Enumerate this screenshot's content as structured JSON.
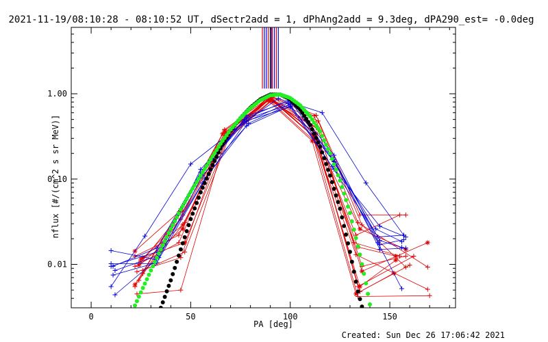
{
  "chart_data": {
    "type": "scatter",
    "title": "2021-11-19/08:10:28 - 08:10:52 UT, dSectr2add = 1, dPhAng2add = 9.3deg, dPA290_est= -0.0deg",
    "xlabel": "PA [deg]",
    "ylabel": "nflux [#/(cm^2 s sr MeV)]",
    "footer": "Created: Sun Dec 26 17:06:42 2021",
    "xlim": [
      -10,
      183
    ],
    "ylim": [
      0.0031,
      6.0
    ],
    "yscale": "log",
    "grid": false,
    "xticks": [
      {
        "v": 0,
        "label": "0"
      },
      {
        "v": 50,
        "label": "50"
      },
      {
        "v": 100,
        "label": "100"
      },
      {
        "v": 150,
        "label": "150"
      }
    ],
    "yticks": [
      {
        "v": 0.01,
        "label": "0.01"
      },
      {
        "v": 0.1,
        "label": "0.10"
      },
      {
        "v": 1,
        "label": "1.00"
      }
    ],
    "colors": {
      "red": "#e00000",
      "blue": "#0000dd",
      "green": "#22ee22",
      "black": "#000000"
    },
    "fit_curves": [
      {
        "color": "green",
        "points": [
          [
            22,
            0.0033
          ],
          [
            25,
            0.0047
          ],
          [
            30,
            0.0085
          ],
          [
            35,
            0.015
          ],
          [
            40,
            0.026
          ],
          [
            45,
            0.044
          ],
          [
            50,
            0.071
          ],
          [
            55,
            0.11
          ],
          [
            60,
            0.17
          ],
          [
            65,
            0.26
          ],
          [
            70,
            0.38
          ],
          [
            75,
            0.52
          ],
          [
            80,
            0.68
          ],
          [
            85,
            0.84
          ],
          [
            90,
            0.96
          ],
          [
            95,
            0.98
          ],
          [
            100,
            0.89
          ],
          [
            105,
            0.73
          ],
          [
            110,
            0.54
          ],
          [
            115,
            0.36
          ],
          [
            120,
            0.2
          ],
          [
            125,
            0.096
          ],
          [
            130,
            0.04
          ],
          [
            135,
            0.013
          ],
          [
            138,
            0.006
          ],
          [
            140,
            0.0034
          ]
        ]
      },
      {
        "color": "black",
        "points": [
          [
            35,
            0.0031
          ],
          [
            40,
            0.0065
          ],
          [
            45,
            0.015
          ],
          [
            50,
            0.034
          ],
          [
            55,
            0.07
          ],
          [
            60,
            0.13
          ],
          [
            65,
            0.23
          ],
          [
            70,
            0.37
          ],
          [
            75,
            0.52
          ],
          [
            80,
            0.69
          ],
          [
            85,
            0.86
          ],
          [
            90,
            0.98
          ],
          [
            95,
            0.98
          ],
          [
            100,
            0.86
          ],
          [
            105,
            0.65
          ],
          [
            110,
            0.43
          ],
          [
            115,
            0.24
          ],
          [
            120,
            0.11
          ],
          [
            125,
            0.045
          ],
          [
            130,
            0.014
          ],
          [
            134,
            0.0048
          ],
          [
            136,
            0.0032
          ]
        ]
      }
    ],
    "series": [
      {
        "color": "red",
        "marker": "+",
        "points": [
          [
            22,
            0.0055
          ],
          [
            45,
            0.045
          ],
          [
            67,
            0.34
          ],
          [
            90,
            0.9
          ],
          [
            113,
            0.3
          ],
          [
            135,
            0.0048
          ],
          [
            160,
            0.0098
          ]
        ]
      },
      {
        "color": "red",
        "marker": "+",
        "points": [
          [
            24,
            0.0065
          ],
          [
            46,
            0.038
          ],
          [
            68,
            0.32
          ],
          [
            90,
            0.88
          ],
          [
            112,
            0.35
          ],
          [
            134,
            0.0055
          ],
          [
            162,
            0.0125
          ]
        ]
      },
      {
        "color": "red",
        "marker": "+",
        "points": [
          [
            26,
            0.0078
          ],
          [
            47,
            0.031
          ],
          [
            69,
            0.36
          ],
          [
            91,
            0.92
          ],
          [
            114,
            0.38
          ],
          [
            136,
            0.0095
          ],
          [
            158,
            0.0125
          ]
        ]
      },
      {
        "color": "red",
        "marker": "+",
        "points": [
          [
            22,
            0.0125
          ],
          [
            44,
            0.022
          ],
          [
            66,
            0.28
          ],
          [
            89,
            0.86
          ],
          [
            111,
            0.42
          ],
          [
            133,
            0.022
          ],
          [
            155,
            0.038
          ]
        ]
      },
      {
        "color": "red",
        "marker": "+",
        "points": [
          [
            23,
            0.0045
          ],
          [
            45,
            0.005
          ],
          [
            67,
            0.28
          ],
          [
            90,
            0.82
          ],
          [
            112,
            0.28
          ],
          [
            134,
            0.0042
          ],
          [
            170,
            0.0043
          ]
        ]
      },
      {
        "color": "red",
        "marker": "+",
        "points": [
          [
            25,
            0.0105
          ],
          [
            46,
            0.042
          ],
          [
            68,
            0.31
          ],
          [
            90,
            0.95
          ],
          [
            113,
            0.56
          ],
          [
            135,
            0.038
          ],
          [
            158,
            0.038
          ]
        ]
      },
      {
        "color": "red",
        "marker": "+",
        "points": [
          [
            22,
            0.0095
          ],
          [
            44,
            0.018
          ],
          [
            66,
            0.26
          ],
          [
            88,
            0.88
          ],
          [
            110,
            0.44
          ],
          [
            132,
            0.018
          ],
          [
            155,
            0.0125
          ]
        ]
      },
      {
        "color": "red",
        "marker": "+",
        "points": [
          [
            26,
            0.0085
          ],
          [
            47,
            0.014
          ],
          [
            69,
            0.3
          ],
          [
            91,
            0.84
          ],
          [
            114,
            0.48
          ],
          [
            136,
            0.029
          ],
          [
            158,
            0.0093
          ]
        ]
      },
      {
        "color": "red",
        "marker": "+",
        "points": [
          [
            24,
            0.0105
          ],
          [
            45,
            0.034
          ],
          [
            67,
            0.38
          ],
          [
            90,
            0.93
          ],
          [
            112,
            0.55
          ],
          [
            134,
            0.031
          ],
          [
            169,
            0.0093
          ]
        ]
      },
      {
        "color": "red",
        "marker": "+",
        "points": [
          [
            23,
            0.0082
          ],
          [
            45,
            0.012
          ],
          [
            67,
            0.33
          ],
          [
            89,
            0.9
          ],
          [
            111,
            0.33
          ],
          [
            133,
            0.013
          ],
          [
            169,
            0.0051
          ]
        ]
      },
      {
        "color": "red",
        "marker": "*",
        "points": [
          [
            22,
            0.0143
          ],
          [
            45,
            0.043
          ],
          [
            67,
            0.37
          ],
          [
            90,
            0.87
          ],
          [
            112,
            0.31
          ],
          [
            135,
            0.0055
          ],
          [
            153,
            0.0112
          ]
        ]
      },
      {
        "color": "red",
        "marker": "*",
        "points": [
          [
            24,
            0.0098
          ],
          [
            46,
            0.026
          ],
          [
            68,
            0.35
          ],
          [
            90,
            0.9
          ],
          [
            113,
            0.34
          ],
          [
            134,
            0.016
          ],
          [
            153,
            0.0125
          ]
        ]
      },
      {
        "color": "red",
        "marker": "*",
        "points": [
          [
            26,
            0.012
          ],
          [
            47,
            0.018
          ],
          [
            69,
            0.32
          ],
          [
            91,
            0.86
          ],
          [
            114,
            0.39
          ],
          [
            136,
            0.0083
          ],
          [
            169,
            0.018
          ]
        ]
      },
      {
        "color": "red",
        "marker": "*",
        "points": [
          [
            22,
            0.0058
          ],
          [
            44,
            0.04
          ],
          [
            66,
            0.34
          ],
          [
            89,
            0.83
          ],
          [
            111,
            0.28
          ],
          [
            133,
            0.0045
          ],
          [
            152,
            0.0079
          ]
        ]
      },
      {
        "color": "red",
        "marker": "*",
        "points": [
          [
            25,
            0.0115
          ],
          [
            46,
            0.029
          ],
          [
            68,
            0.3
          ],
          [
            90,
            0.88
          ],
          [
            113,
            0.3
          ],
          [
            135,
            0.026
          ],
          [
            158,
            0.015
          ]
        ]
      },
      {
        "color": "blue",
        "marker": "+",
        "points": [
          [
            10,
            0.0095
          ],
          [
            33,
            0.014
          ],
          [
            56,
            0.12
          ],
          [
            78,
            0.55
          ],
          [
            100,
            0.82
          ],
          [
            122,
            0.17
          ],
          [
            145,
            0.015
          ],
          [
            158,
            0.0155
          ]
        ]
      },
      {
        "color": "blue",
        "marker": "+",
        "points": [
          [
            10,
            0.0145
          ],
          [
            32,
            0.0115
          ],
          [
            55,
            0.11
          ],
          [
            77,
            0.5
          ],
          [
            100,
            0.75
          ],
          [
            121,
            0.14
          ],
          [
            144,
            0.021
          ],
          [
            157,
            0.022
          ]
        ]
      },
      {
        "color": "blue",
        "marker": "+",
        "points": [
          [
            11,
            0.0075
          ],
          [
            33,
            0.0105
          ],
          [
            56,
            0.09
          ],
          [
            78,
            0.48
          ],
          [
            100,
            0.7
          ],
          [
            122,
            0.13
          ],
          [
            145,
            0.028
          ],
          [
            158,
            0.021
          ]
        ]
      },
      {
        "color": "blue",
        "marker": "+",
        "points": [
          [
            10,
            0.0055
          ],
          [
            27,
            0.0215
          ],
          [
            50,
            0.15
          ],
          [
            72,
            0.38
          ],
          [
            94,
            0.88
          ],
          [
            116,
            0.6
          ],
          [
            138,
            0.09
          ],
          [
            157,
            0.022
          ]
        ]
      },
      {
        "color": "blue",
        "marker": "+",
        "points": [
          [
            12,
            0.0044
          ],
          [
            34,
            0.012
          ],
          [
            56,
            0.11
          ],
          [
            78,
            0.42
          ],
          [
            100,
            0.72
          ],
          [
            122,
            0.16
          ],
          [
            144,
            0.018
          ],
          [
            156,
            0.0052
          ]
        ]
      },
      {
        "color": "blue",
        "marker": "+",
        "points": [
          [
            11,
            0.0095
          ],
          [
            33,
            0.0155
          ],
          [
            55,
            0.12
          ],
          [
            77,
            0.46
          ],
          [
            99,
            0.78
          ],
          [
            121,
            0.17
          ],
          [
            143,
            0.026
          ],
          [
            156,
            0.0185
          ]
        ]
      },
      {
        "color": "blue",
        "marker": "+",
        "points": [
          [
            10,
            0.0102
          ],
          [
            32,
            0.0102
          ],
          [
            55,
            0.13
          ],
          [
            78,
            0.52
          ],
          [
            100,
            0.86
          ],
          [
            122,
            0.19
          ],
          [
            145,
            0.017
          ],
          [
            157,
            0.0195
          ]
        ]
      },
      {
        "color": "blue",
        "marker": "+",
        "points": [
          [
            12,
            0.0085
          ],
          [
            34,
            0.0128
          ],
          [
            57,
            0.1
          ],
          [
            79,
            0.45
          ],
          [
            101,
            0.77
          ],
          [
            123,
            0.15
          ],
          [
            145,
            0.019
          ],
          [
            156,
            0.0158
          ]
        ]
      }
    ],
    "spikes": [
      {
        "x": 86,
        "color": "red"
      },
      {
        "x": 87,
        "color": "blue"
      },
      {
        "x": 88,
        "color": "blue"
      },
      {
        "x": 89,
        "color": "red"
      },
      {
        "x": 90,
        "color": "black"
      },
      {
        "x": 90.5,
        "color": "blue"
      },
      {
        "x": 91,
        "color": "red"
      },
      {
        "x": 92,
        "color": "blue"
      },
      {
        "x": 93,
        "color": "red"
      },
      {
        "x": 94,
        "color": "blue"
      }
    ]
  }
}
